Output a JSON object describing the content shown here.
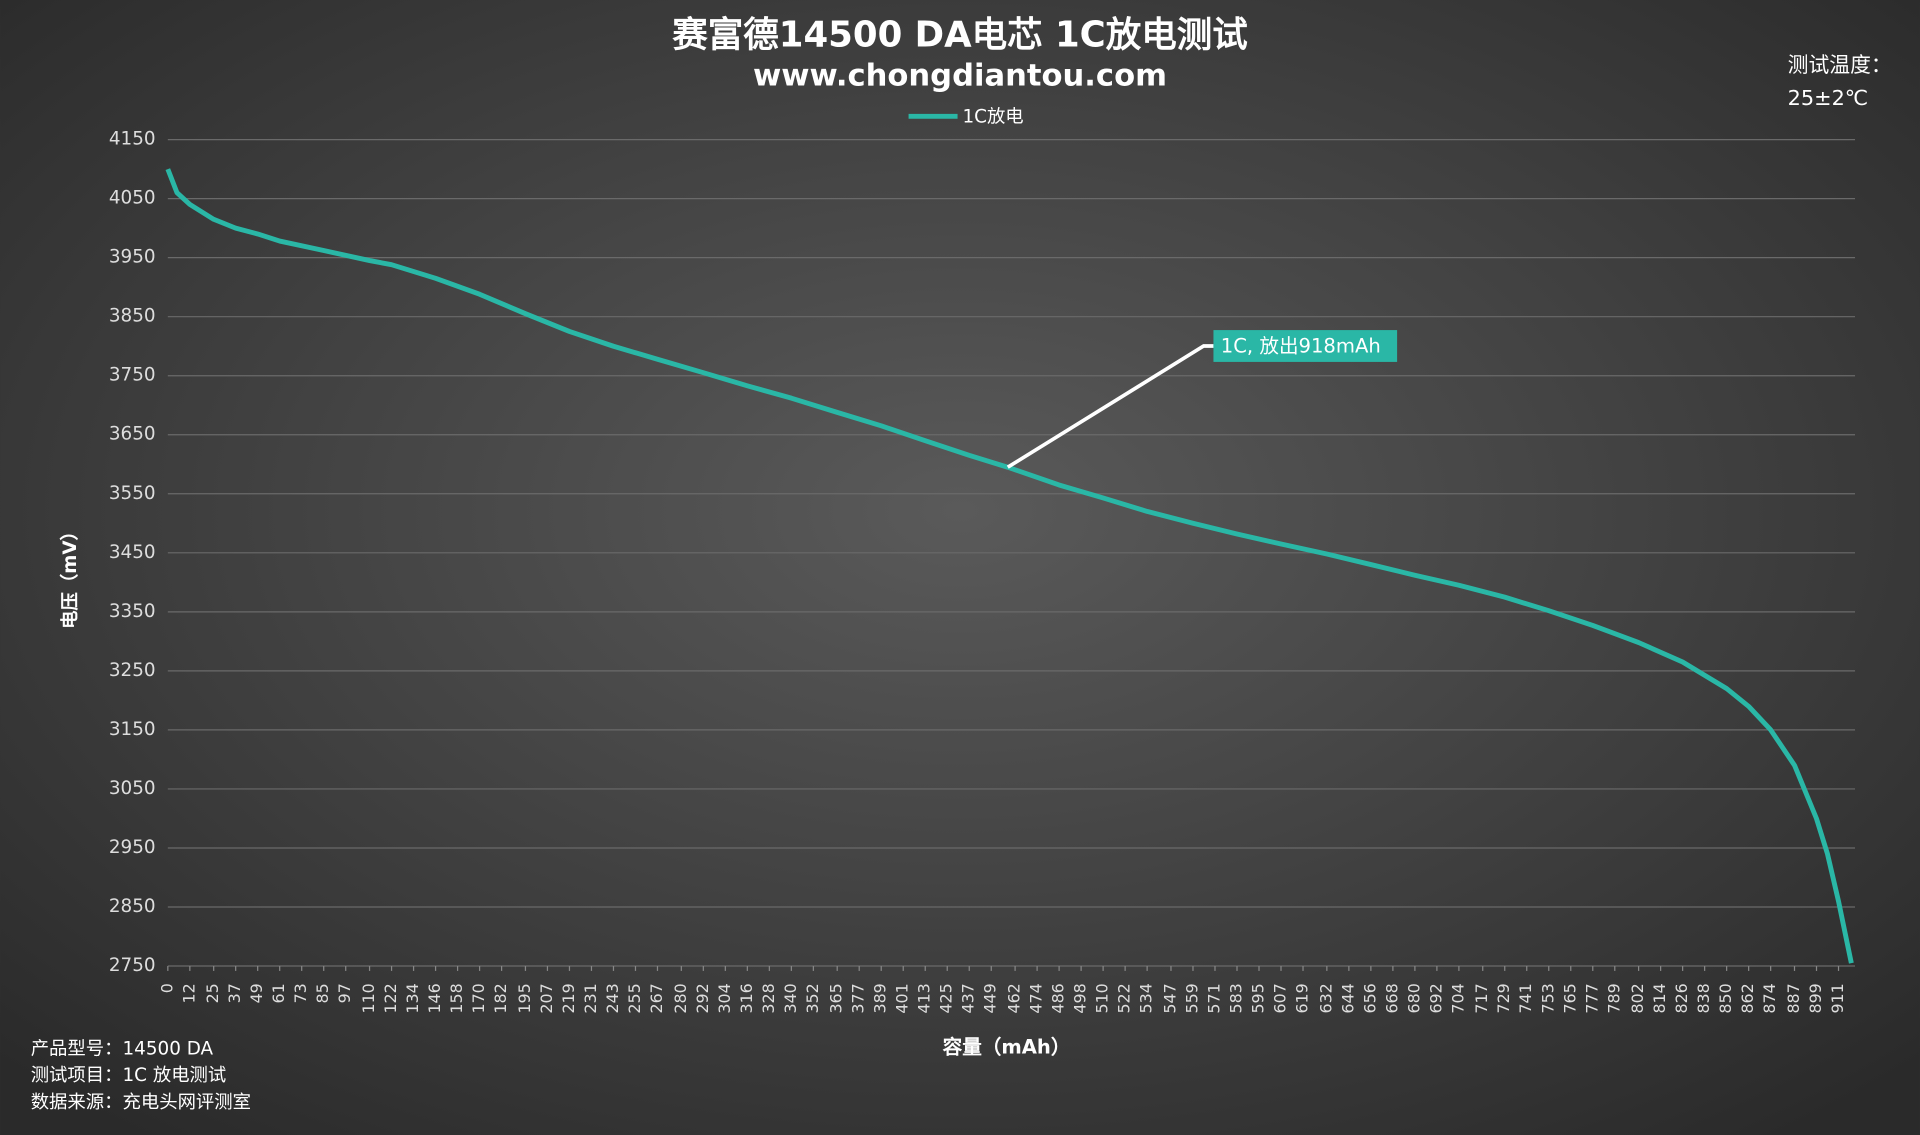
{
  "chart_data": {
    "type": "line",
    "title": "赛富德14500 DA电芯  1C放电测试",
    "subtitle": "www.chongdiantou.com",
    "y_label": "电压（mV）",
    "x_label": "容量（mAh）",
    "temperature_label": "测试温度：",
    "temperature": "25±2℃",
    "notes": [
      "产品型号：14500 DA",
      "测试项目：1C 放电测试",
      "数据来源：充电头网评测室"
    ],
    "annotation": {
      "text": "1C, 放出918mAh",
      "x": 458,
      "y": 3595
    },
    "xlim": [
      0,
      920
    ],
    "xticks": [
      0,
      12,
      25,
      37,
      49,
      61,
      73,
      85,
      97,
      110,
      122,
      134,
      146,
      158,
      170,
      182,
      195,
      207,
      219,
      231,
      243,
      255,
      267,
      280,
      292,
      304,
      316,
      328,
      340,
      352,
      365,
      377,
      389,
      401,
      413,
      425,
      437,
      449,
      462,
      474,
      486,
      498,
      510,
      522,
      534,
      547,
      559,
      571,
      583,
      595,
      607,
      619,
      632,
      644,
      656,
      668,
      680,
      692,
      704,
      717,
      729,
      741,
      753,
      765,
      777,
      789,
      802,
      814,
      826,
      838,
      850,
      862,
      874,
      887,
      899,
      911
    ],
    "ylim": [
      2750,
      4150
    ],
    "yticks": [
      2750,
      2850,
      2950,
      3050,
      3150,
      3250,
      3350,
      3450,
      3550,
      3650,
      3750,
      3850,
      3950,
      4050,
      4150
    ],
    "grid": true,
    "legend": "top",
    "x": [
      0,
      5,
      12,
      25,
      37,
      49,
      61,
      85,
      110,
      122,
      146,
      170,
      195,
      219,
      243,
      267,
      292,
      316,
      340,
      365,
      389,
      413,
      437,
      458,
      486,
      510,
      534,
      559,
      583,
      607,
      632,
      656,
      680,
      704,
      729,
      753,
      777,
      802,
      826,
      850,
      862,
      874,
      887,
      899,
      905,
      911,
      918
    ],
    "series": [
      {
        "name": "1C放电",
        "color": "#2ab7a6",
        "values": [
          4100,
          4060,
          4040,
          4015,
          4000,
          3990,
          3978,
          3962,
          3945,
          3938,
          3915,
          3888,
          3855,
          3825,
          3800,
          3778,
          3755,
          3733,
          3712,
          3688,
          3665,
          3640,
          3615,
          3595,
          3565,
          3543,
          3520,
          3500,
          3482,
          3465,
          3448,
          3430,
          3412,
          3395,
          3375,
          3352,
          3327,
          3298,
          3265,
          3220,
          3190,
          3150,
          3090,
          3000,
          2940,
          2860,
          2755
        ]
      }
    ]
  }
}
